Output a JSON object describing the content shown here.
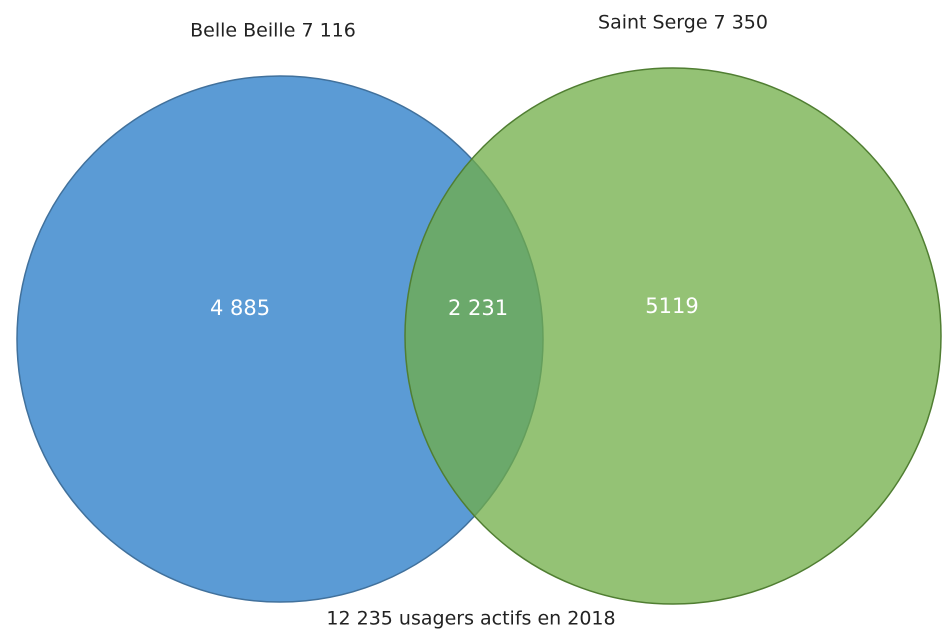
{
  "sets": [
    {
      "label": "Belle Beille 7 116",
      "only": "4 885"
    },
    {
      "label": "Saint Serge 7 350",
      "only": "5119"
    }
  ],
  "intersection": "2 231",
  "caption": "12 235 usagers actifs en 2018"
}
